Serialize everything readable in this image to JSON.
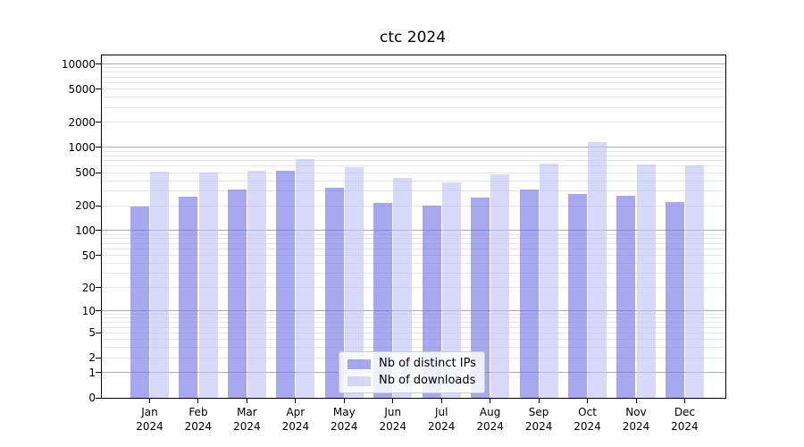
{
  "figure": {
    "background_color": "#ffffff"
  },
  "chart_data": {
    "type": "bar",
    "title": "ctc 2024",
    "xlabel": "",
    "ylabel": "",
    "categories": [
      "Jan 2024",
      "Feb 2024",
      "Mar 2024",
      "Apr 2024",
      "May 2024",
      "Jun 2024",
      "Jul 2024",
      "Aug 2024",
      "Sep 2024",
      "Oct 2024",
      "Nov 2024",
      "Dec 2024"
    ],
    "series": [
      {
        "name": "Nb of distinct IPs",
        "color": "#7272e6",
        "alpha": 0.62,
        "displayed_color": "#a6a6ee",
        "values": [
          195,
          255,
          315,
          520,
          325,
          215,
          198,
          250,
          315,
          277,
          260,
          220
        ]
      },
      {
        "name": "Nb of downloads",
        "color": "#c0c0f4",
        "alpha": 0.62,
        "displayed_color": "#d8d8f8",
        "values": [
          510,
          505,
          530,
          720,
          580,
          430,
          385,
          475,
          645,
          1150,
          620,
          605
        ]
      }
    ],
    "yscale": "symlog",
    "ylim": [
      0,
      12500
    ],
    "yticks": [
      0,
      1,
      2,
      5,
      10,
      20,
      50,
      100,
      200,
      500,
      1000,
      2000,
      5000,
      10000
    ],
    "grid": {
      "horizontal": true,
      "vertical": false,
      "major_color": "#ababab",
      "minor_color": "#e6e6e6"
    },
    "legend": {
      "position": "inside-bottom-center",
      "border_color": "#cccccc",
      "background": "#ffffff"
    }
  }
}
